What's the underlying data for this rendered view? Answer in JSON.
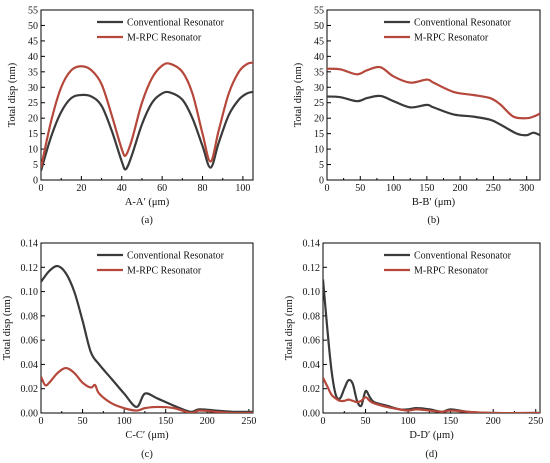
{
  "colors": {
    "conventional": "#3a3a3a",
    "mrpc": "#b5473b",
    "axis": "#000000"
  },
  "chart_data": [
    {
      "type": "line",
      "panel_label": "(a)",
      "xlabel": "A-A′  (μm)",
      "ylabel": "Total disp (nm)",
      "xlim": [
        0,
        105
      ],
      "ylim": [
        0,
        55
      ],
      "xticks": [
        0,
        20,
        40,
        60,
        80,
        100
      ],
      "yticks": [
        0,
        5,
        10,
        15,
        20,
        25,
        30,
        35,
        40,
        45,
        50,
        55
      ],
      "xtick_labels": [
        "0",
        "20",
        "40",
        "60",
        "80",
        "100"
      ],
      "ytick_labels": [
        "0",
        "5",
        "10",
        "15",
        "20",
        "25",
        "30",
        "35",
        "40",
        "45",
        "50",
        "55"
      ],
      "legend": "top-right",
      "series": [
        {
          "name": "Conventional Resonator",
          "color_key": "conventional",
          "x": [
            0,
            5,
            10,
            15,
            20,
            25,
            30,
            35,
            40,
            42,
            45,
            50,
            55,
            60,
            64,
            70,
            75,
            80,
            84,
            88,
            93,
            98,
            102,
            105
          ],
          "y": [
            3,
            14,
            22,
            26.5,
            27.5,
            27,
            24,
            16,
            6,
            3.5,
            8,
            18,
            25,
            28,
            28.3,
            26,
            20,
            11,
            4,
            12,
            21,
            26,
            28,
            28.5
          ]
        },
        {
          "name": "M-RPC Resonator",
          "color_key": "mrpc",
          "x": [
            0,
            5,
            10,
            15,
            20,
            25,
            30,
            35,
            40,
            42,
            45,
            50,
            55,
            60,
            64,
            70,
            75,
            80,
            84,
            88,
            93,
            98,
            102,
            105
          ],
          "y": [
            4,
            19,
            30,
            35.5,
            36.8,
            35.5,
            31,
            21,
            10,
            8,
            13,
            25,
            33,
            37,
            37.6,
            35,
            28,
            15,
            6,
            16,
            28,
            35,
            37.5,
            38
          ]
        }
      ]
    },
    {
      "type": "line",
      "panel_label": "(b)",
      "xlabel": "B-B′  (μm)",
      "ylabel": "Total disp (nm)",
      "xlim": [
        0,
        320
      ],
      "ylim": [
        0,
        55
      ],
      "xticks": [
        0,
        50,
        100,
        150,
        200,
        250,
        300
      ],
      "yticks": [
        0,
        5,
        10,
        15,
        20,
        25,
        30,
        35,
        40,
        45,
        50,
        55
      ],
      "xtick_labels": [
        "0",
        "50",
        "100",
        "150",
        "200",
        "250",
        "300"
      ],
      "ytick_labels": [
        "0",
        "5",
        "10",
        "15",
        "20",
        "25",
        "30",
        "35",
        "40",
        "45",
        "50",
        "55"
      ],
      "legend": "top-right",
      "series": [
        {
          "name": "Conventional Resonator",
          "color_key": "conventional",
          "x": [
            0,
            20,
            45,
            60,
            80,
            100,
            125,
            150,
            160,
            190,
            220,
            245,
            260,
            285,
            300,
            310,
            320
          ],
          "y": [
            27,
            26.8,
            25.5,
            26.5,
            27.2,
            25.5,
            23.5,
            24.3,
            23.5,
            21.2,
            20.5,
            19.5,
            18,
            15,
            14.5,
            15.3,
            14.5
          ]
        },
        {
          "name": "M-RPC Resonator",
          "color_key": "mrpc",
          "x": [
            0,
            20,
            45,
            60,
            80,
            100,
            125,
            150,
            160,
            190,
            220,
            245,
            260,
            280,
            300,
            310,
            320
          ],
          "y": [
            36,
            35.8,
            34.2,
            35.5,
            36.5,
            33.5,
            31.5,
            32.5,
            31.5,
            28.5,
            27.5,
            26.5,
            24.5,
            20.5,
            20,
            20.5,
            21.5
          ]
        }
      ]
    },
    {
      "type": "line",
      "panel_label": "(c)",
      "xlabel": "C-C′  (μm)",
      "ylabel": "Total disp (nm)",
      "xlim": [
        0,
        255
      ],
      "ylim": [
        0,
        0.14
      ],
      "xticks": [
        0,
        50,
        100,
        150,
        200,
        250
      ],
      "yticks": [
        0,
        0.02,
        0.04,
        0.06,
        0.08,
        0.1,
        0.12,
        0.14
      ],
      "xtick_labels": [
        "0",
        "50",
        "100",
        "150",
        "200",
        "250"
      ],
      "ytick_labels": [
        "0.00",
        "0.02",
        "0.04",
        "0.06",
        "0.08",
        "0.10",
        "0.12",
        "0.14"
      ],
      "legend": "top-right",
      "series": [
        {
          "name": "Conventional Resonator",
          "color_key": "conventional",
          "x": [
            0,
            10,
            20,
            30,
            40,
            50,
            60,
            70,
            85,
            100,
            115,
            125,
            140,
            160,
            180,
            190,
            210,
            230,
            255
          ],
          "y": [
            0.108,
            0.117,
            0.121,
            0.115,
            0.1,
            0.076,
            0.05,
            0.04,
            0.028,
            0.016,
            0.005,
            0.016,
            0.012,
            0.006,
            0.001,
            0.003,
            0.002,
            0.001,
            0.001
          ]
        },
        {
          "name": "M-RPC Resonator",
          "color_key": "mrpc",
          "x": [
            0,
            5,
            10,
            20,
            30,
            40,
            50,
            60,
            65,
            70,
            85,
            100,
            115,
            125,
            140,
            160,
            180,
            190,
            210,
            230,
            255
          ],
          "y": [
            0.03,
            0.023,
            0.025,
            0.033,
            0.037,
            0.033,
            0.025,
            0.021,
            0.023,
            0.016,
            0.008,
            0.004,
            0.002,
            0.004,
            0.005,
            0.004,
            0.0,
            0.002,
            0.001,
            0.0,
            0.0
          ]
        }
      ]
    },
    {
      "type": "line",
      "panel_label": "(d)",
      "xlabel": "D-D′  (μm)",
      "ylabel": "Total disp (nm)",
      "xlim": [
        0,
        255
      ],
      "ylim": [
        0,
        0.14
      ],
      "xticks": [
        0,
        50,
        100,
        150,
        200,
        250
      ],
      "yticks": [
        0,
        0.02,
        0.04,
        0.06,
        0.08,
        0.1,
        0.12,
        0.14
      ],
      "xtick_labels": [
        "0",
        "50",
        "100",
        "150",
        "200",
        "250"
      ],
      "ytick_labels": [
        "0.00",
        "0.02",
        "0.04",
        "0.06",
        "0.08",
        "0.10",
        "0.12",
        "0.14"
      ],
      "legend": "top-right",
      "series": [
        {
          "name": "Conventional Resonator",
          "color_key": "conventional",
          "x": [
            0,
            5,
            10,
            15,
            20,
            25,
            30,
            35,
            40,
            45,
            50,
            55,
            60,
            75,
            90,
            100,
            110,
            125,
            140,
            150,
            170,
            200,
            255
          ],
          "y": [
            0.11,
            0.07,
            0.035,
            0.015,
            0.012,
            0.02,
            0.027,
            0.024,
            0.01,
            0.006,
            0.018,
            0.013,
            0.009,
            0.006,
            0.003,
            0.003,
            0.004,
            0.003,
            0.001,
            0.003,
            0.001,
            0.0,
            0.0
          ]
        },
        {
          "name": "M-RPC Resonator",
          "color_key": "mrpc",
          "x": [
            0,
            5,
            10,
            15,
            20,
            25,
            30,
            35,
            40,
            45,
            50,
            55,
            60,
            75,
            90,
            100,
            110,
            125,
            140,
            150,
            170,
            200,
            255
          ],
          "y": [
            0.029,
            0.022,
            0.015,
            0.012,
            0.01,
            0.01,
            0.011,
            0.01,
            0.009,
            0.01,
            0.013,
            0.01,
            0.008,
            0.005,
            0.003,
            0.002,
            0.003,
            0.002,
            0.001,
            0.002,
            0.001,
            0.0,
            0.0
          ]
        }
      ]
    }
  ]
}
